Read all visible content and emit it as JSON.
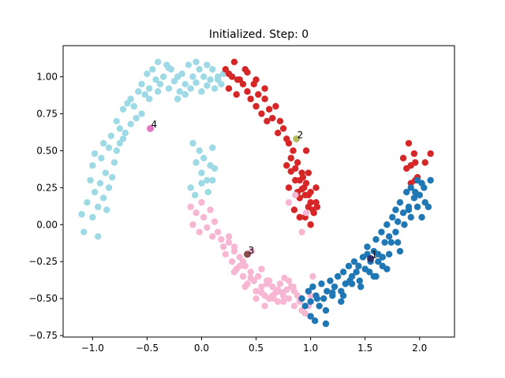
{
  "chart_data": {
    "type": "scatter",
    "title": "Initialized. Step: 0",
    "xlabel": "",
    "ylabel": "",
    "xlim": [
      -1.27,
      2.32
    ],
    "ylim": [
      -0.76,
      1.21
    ],
    "xticks": [
      -1.0,
      -0.5,
      0.0,
      0.5,
      1.0,
      1.5,
      2.0
    ],
    "xtick_labels": [
      "−1.0",
      "−0.5",
      "0.0",
      "0.5",
      "1.0",
      "1.5",
      "2.0"
    ],
    "yticks": [
      -0.75,
      -0.5,
      -0.25,
      0.0,
      0.25,
      0.5,
      0.75,
      1.0
    ],
    "ytick_labels": [
      "−0.75",
      "−0.50",
      "−0.25",
      "0.00",
      "0.25",
      "0.50",
      "0.75",
      "1.00"
    ],
    "grid": false,
    "legend": "none",
    "series": [
      {
        "color": "#9edae5",
        "x": [
          -1.1,
          -1.05,
          -1.02,
          -1.0,
          -0.98,
          -0.95,
          -0.93,
          -0.92,
          -0.9,
          -0.88,
          -0.85,
          -0.83,
          -0.8,
          -0.78,
          -0.75,
          -0.72,
          -0.7,
          -0.68,
          -0.65,
          -0.6,
          -0.58,
          -0.55,
          -0.52,
          -0.5,
          -0.48,
          -0.45,
          -0.42,
          -0.4,
          -0.38,
          -0.35,
          -0.32,
          -0.3,
          -0.28,
          -0.25,
          -0.22,
          -0.2,
          -0.18,
          -0.15,
          -0.12,
          -0.1,
          -0.08,
          -0.05,
          -0.02,
          0.0,
          0.02,
          0.05,
          0.08,
          0.1,
          0.12,
          0.15,
          0.18,
          0.2,
          -0.08,
          -0.05,
          -0.02,
          0.0,
          0.02,
          0.05,
          0.08,
          0.1,
          0.12,
          -0.1,
          -0.06,
          0.0,
          0.06,
          0.1,
          -1.08,
          -1.0,
          -0.95,
          -0.9,
          -0.85,
          -0.82,
          -0.78,
          -0.72,
          -0.65,
          -0.62,
          -0.55,
          -0.48,
          -0.4,
          -0.3,
          -0.22,
          -0.15,
          -0.05,
          0.05,
          0.15,
          -0.98,
          -0.87,
          -0.75
        ],
        "y": [
          0.07,
          0.15,
          0.3,
          0.4,
          0.22,
          0.12,
          0.28,
          0.45,
          0.55,
          0.35,
          0.52,
          0.6,
          0.42,
          0.7,
          0.65,
          0.78,
          0.62,
          0.82,
          0.85,
          0.72,
          0.9,
          0.95,
          0.88,
          1.02,
          0.92,
          1.05,
          0.98,
          1.1,
          0.95,
          1.0,
          1.08,
          0.92,
          1.05,
          0.97,
          1.0,
          0.9,
          1.02,
          0.95,
          1.08,
          0.92,
          1.0,
          0.96,
          1.05,
          0.9,
          1.0,
          0.94,
          0.98,
          1.05,
          0.92,
          1.0,
          0.95,
          1.02,
          0.55,
          0.42,
          0.5,
          0.35,
          0.45,
          0.3,
          0.4,
          0.52,
          0.38,
          0.25,
          0.2,
          0.28,
          0.22,
          0.3,
          -0.05,
          0.05,
          -0.08,
          0.18,
          0.25,
          0.32,
          0.5,
          0.58,
          0.68,
          0.8,
          0.75,
          0.85,
          0.9,
          1.06,
          0.85,
          0.88,
          1.1,
          1.08,
          0.98,
          0.48,
          0.1,
          0.55
        ]
      },
      {
        "color": "#d62728",
        "x": [
          0.22,
          0.25,
          0.28,
          0.3,
          0.32,
          0.35,
          0.38,
          0.4,
          0.42,
          0.45,
          0.48,
          0.5,
          0.52,
          0.55,
          0.58,
          0.6,
          0.62,
          0.65,
          0.68,
          0.7,
          0.72,
          0.75,
          0.78,
          0.8,
          0.82,
          0.84,
          0.86,
          0.88,
          0.9,
          0.92,
          0.94,
          0.96,
          0.98,
          1.0,
          0.85,
          0.88,
          0.9,
          0.93,
          0.95,
          0.98,
          1.02,
          1.05,
          0.9,
          0.95,
          1.0,
          1.03,
          1.06,
          0.8,
          0.86,
          0.92,
          0.98,
          1.05,
          0.78,
          0.82,
          0.96,
          1.0,
          0.58,
          0.5,
          0.42,
          0.33,
          0.25,
          1.9,
          1.95,
          1.92,
          1.96,
          1.85,
          1.88,
          1.98,
          2.05,
          2.1,
          1.92,
          1.96
        ],
        "y": [
          1.05,
          0.92,
          1.0,
          1.1,
          0.88,
          0.98,
          0.95,
          1.05,
          0.9,
          0.85,
          0.95,
          0.8,
          0.88,
          0.75,
          0.85,
          0.7,
          0.78,
          0.72,
          0.8,
          0.62,
          0.7,
          0.65,
          0.58,
          0.55,
          0.45,
          0.5,
          0.38,
          0.42,
          0.3,
          0.35,
          0.25,
          0.28,
          0.2,
          0.15,
          0.1,
          0.22,
          0.18,
          0.32,
          0.2,
          0.12,
          0.1,
          0.25,
          0.05,
          0.05,
          0.0,
          0.08,
          0.12,
          0.25,
          0.3,
          0.24,
          0.35,
          0.15,
          0.4,
          0.36,
          0.5,
          0.22,
          0.92,
          0.98,
          1.03,
          0.98,
          1.02,
          0.55,
          0.48,
          0.4,
          0.42,
          0.45,
          0.38,
          0.32,
          0.42,
          0.48,
          0.28,
          0.3
        ]
      },
      {
        "color": "#f7b6d2",
        "x": [
          -0.1,
          -0.08,
          -0.05,
          -0.02,
          0.0,
          0.02,
          0.05,
          0.08,
          0.1,
          0.12,
          0.15,
          0.18,
          0.2,
          0.22,
          0.25,
          0.28,
          0.3,
          0.32,
          0.35,
          0.38,
          0.4,
          0.42,
          0.45,
          0.48,
          0.5,
          0.52,
          0.55,
          0.58,
          0.6,
          0.62,
          0.65,
          0.68,
          0.7,
          0.72,
          0.75,
          0.78,
          0.8,
          0.82,
          0.85,
          0.88,
          0.9,
          0.92,
          0.95,
          0.98,
          1.0,
          0.3,
          0.35,
          0.4,
          0.45,
          0.5,
          0.55,
          0.6,
          0.65,
          0.7,
          0.75,
          0.8,
          0.85,
          0.25,
          0.3,
          0.38,
          0.46,
          0.55,
          0.62,
          0.7,
          0.76,
          0.84,
          0.9,
          0.8,
          0.86,
          0.92,
          0.96,
          1.02,
          0.58,
          0.66,
          0.74
        ],
        "y": [
          0.12,
          0.0,
          0.08,
          -0.05,
          0.15,
          0.05,
          -0.02,
          0.1,
          -0.08,
          0.02,
          -0.05,
          -0.1,
          -0.15,
          -0.2,
          -0.12,
          -0.25,
          -0.18,
          -0.3,
          -0.22,
          -0.35,
          -0.28,
          -0.4,
          -0.32,
          -0.38,
          -0.45,
          -0.35,
          -0.42,
          -0.48,
          -0.38,
          -0.5,
          -0.42,
          -0.46,
          -0.52,
          -0.4,
          -0.48,
          -0.44,
          -0.5,
          -0.42,
          -0.55,
          -0.48,
          -0.52,
          -0.58,
          -0.6,
          -0.55,
          -0.48,
          -0.32,
          -0.28,
          -0.42,
          -0.36,
          -0.5,
          -0.46,
          -0.4,
          -0.48,
          -0.44,
          -0.52,
          -0.38,
          -0.45,
          -0.08,
          -0.15,
          -0.25,
          -0.18,
          -0.3,
          -0.38,
          -0.45,
          -0.36,
          -0.42,
          -0.5,
          0.15,
          0.2,
          -0.05,
          0.08,
          -0.35,
          -0.55,
          -0.5,
          -0.46
        ]
      },
      {
        "color": "#1f77b4",
        "x": [
          0.92,
          0.95,
          0.98,
          1.0,
          1.02,
          1.05,
          1.08,
          1.1,
          1.12,
          1.15,
          1.18,
          1.2,
          1.22,
          1.25,
          1.28,
          1.3,
          1.32,
          1.35,
          1.38,
          1.4,
          1.42,
          1.45,
          1.48,
          1.5,
          1.52,
          1.55,
          1.58,
          1.6,
          1.62,
          1.65,
          1.68,
          1.7,
          1.72,
          1.75,
          1.78,
          1.8,
          1.82,
          1.85,
          1.88,
          1.9,
          1.92,
          1.95,
          1.98,
          2.0,
          2.02,
          2.05,
          2.08,
          2.1,
          1.6,
          1.66,
          1.72,
          1.8,
          1.86,
          1.92,
          1.98,
          2.04,
          1.3,
          1.38,
          1.46,
          1.54,
          1.62,
          1.7,
          1.78,
          1.0,
          1.06,
          1.14,
          1.2,
          1.28,
          1.36,
          1.44,
          1.52,
          1.58,
          1.66,
          1.74,
          1.82,
          1.9,
          1.96,
          2.02,
          1.04,
          1.14
        ],
        "y": [
          -0.5,
          -0.55,
          -0.45,
          -0.52,
          -0.42,
          -0.48,
          -0.55,
          -0.4,
          -0.5,
          -0.45,
          -0.38,
          -0.48,
          -0.42,
          -0.35,
          -0.45,
          -0.32,
          -0.4,
          -0.28,
          -0.35,
          -0.25,
          -0.32,
          -0.38,
          -0.22,
          -0.3,
          -0.15,
          -0.25,
          -0.18,
          -0.1,
          -0.2,
          -0.05,
          -0.12,
          0.0,
          -0.08,
          0.05,
          0.1,
          0.02,
          0.15,
          0.08,
          0.22,
          0.12,
          0.25,
          0.18,
          0.3,
          0.2,
          0.28,
          0.15,
          0.12,
          0.3,
          -0.35,
          -0.28,
          -0.2,
          -0.12,
          0.0,
          0.05,
          0.12,
          0.25,
          -0.48,
          -0.4,
          -0.42,
          -0.32,
          -0.25,
          -0.3,
          -0.05,
          -0.62,
          -0.5,
          -0.58,
          -0.46,
          -0.52,
          -0.38,
          -0.28,
          -0.2,
          -0.35,
          -0.22,
          -0.12,
          -0.18,
          0.1,
          0.22,
          0.05,
          -0.65,
          -0.67
        ]
      }
    ],
    "centroids": [
      {
        "label": "1",
        "x": 1.55,
        "y": -0.23,
        "color": "#2c2f6b"
      },
      {
        "label": "2",
        "x": 0.87,
        "y": 0.58,
        "color": "#b5bd61"
      },
      {
        "label": "3",
        "x": 0.42,
        "y": -0.2,
        "color": "#8c4a4a"
      },
      {
        "label": "4",
        "x": -0.47,
        "y": 0.65,
        "color": "#e377c2"
      }
    ]
  }
}
